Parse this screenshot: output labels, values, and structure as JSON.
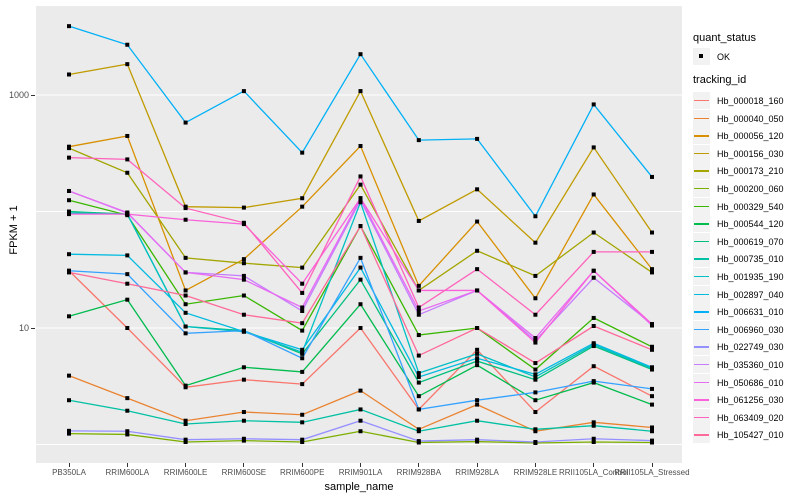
{
  "chart_data": {
    "type": "line",
    "title": "",
    "xlabel": "sample_name",
    "ylabel": "FPKM + 1",
    "y_scale": "log10",
    "ylim": [
      0.7,
      5800
    ],
    "grid": true,
    "panel_bg": "#EBEBEB",
    "grid_color": "#FFFFFF",
    "point_color": "#000000",
    "tick_label_color": "#4D4D4D",
    "gridline_values": [
      1,
      10,
      100,
      1000
    ],
    "y_ticks": [
      {
        "value": 1000,
        "label": "1000"
      },
      {
        "value": 10,
        "label": "10"
      }
    ],
    "categories": [
      "PB350LA",
      "RRIM600LA",
      "RRIM600LE",
      "RRIM600SE",
      "RRIM600PE",
      "RRIM901LA",
      "RRIM928BA",
      "RRIM928LA",
      "RRIM928LE",
      "RRII105LA_Control",
      "RRII105LA_Stressed"
    ],
    "series": [
      {
        "name": "Hb_000018_160",
        "color": "#F8766D",
        "values": [
          31,
          10,
          3.1,
          3.6,
          3.3,
          10,
          2.0,
          6.5,
          1.9,
          4.7,
          2.6
        ]
      },
      {
        "name": "Hb_000040_050",
        "color": "#EA8331",
        "values": [
          3.9,
          2.5,
          1.6,
          1.9,
          1.8,
          2.9,
          1.35,
          2.2,
          1.3,
          1.55,
          1.4
        ]
      },
      {
        "name": "Hb_000056_120",
        "color": "#D89000",
        "values": [
          360,
          445,
          21,
          39,
          110,
          365,
          23,
          82,
          18,
          140,
          32
        ]
      },
      {
        "name": "Hb_000156_030",
        "color": "#C09B00",
        "values": [
          1500,
          1840,
          110,
          108,
          130,
          1080,
          83,
          155,
          54,
          355,
          66
        ]
      },
      {
        "name": "Hb_000173_210",
        "color": "#A3A500",
        "values": [
          350,
          215,
          40,
          36,
          33,
          170,
          21,
          46,
          28,
          66,
          30
        ]
      },
      {
        "name": "Hb_000200_060",
        "color": "#7CAE00",
        "values": [
          1.24,
          1.22,
          1.05,
          1.08,
          1.05,
          1.3,
          1.04,
          1.06,
          1.03,
          1.05,
          1.04
        ]
      },
      {
        "name": "Hb_000329_540",
        "color": "#39B600",
        "values": [
          125,
          93,
          16,
          19,
          9.5,
          75,
          8.7,
          10,
          4.4,
          12.2,
          6.9
        ]
      },
      {
        "name": "Hb_000544_120",
        "color": "#00BB4E",
        "values": [
          12.6,
          17.5,
          3.2,
          4.6,
          4.2,
          16,
          2.6,
          4.8,
          2.4,
          3.4,
          2.2
        ]
      },
      {
        "name": "Hb_000619_070",
        "color": "#00BF7D",
        "values": [
          100,
          95,
          10.3,
          9.5,
          6.0,
          26,
          3.4,
          5.2,
          3.6,
          7.0,
          4.4
        ]
      },
      {
        "name": "Hb_000735_010",
        "color": "#00C1A3",
        "values": [
          2.4,
          1.95,
          1.5,
          1.6,
          1.55,
          2.0,
          1.3,
          1.6,
          1.35,
          1.45,
          1.3
        ]
      },
      {
        "name": "Hb_001935_190",
        "color": "#00BFC4",
        "values": [
          97,
          95,
          10.3,
          9.3,
          6.2,
          120,
          4.1,
          6.0,
          3.8,
          7.2,
          4.5
        ]
      },
      {
        "name": "Hb_002897_040",
        "color": "#00BAE0",
        "values": [
          43,
          42,
          13.5,
          9.3,
          6.5,
          33,
          3.8,
          5.5,
          4.0,
          7.4,
          4.6
        ]
      },
      {
        "name": "Hb_006631_010",
        "color": "#00B0F6",
        "values": [
          3900,
          2700,
          580,
          1080,
          320,
          2240,
          410,
          420,
          91,
          830,
          198
        ]
      },
      {
        "name": "Hb_006960_030",
        "color": "#35A2FF",
        "values": [
          31,
          29,
          9.0,
          9.5,
          5.5,
          40,
          2.0,
          2.4,
          2.8,
          3.5,
          3.0
        ]
      },
      {
        "name": "Hb_022749_030",
        "color": "#9590FF",
        "values": [
          1.31,
          1.3,
          1.1,
          1.12,
          1.1,
          1.6,
          1.07,
          1.1,
          1.05,
          1.12,
          1.08
        ]
      },
      {
        "name": "Hb_035360_010",
        "color": "#C77CFF",
        "values": [
          150,
          97,
          30,
          28,
          14,
          125,
          13,
          21,
          7.8,
          27,
          10.8
        ]
      },
      {
        "name": "Hb_050686_010",
        "color": "#E76BF3",
        "values": [
          150,
          98,
          30,
          26,
          15,
          130,
          14,
          21,
          8.2,
          31,
          10.5
        ]
      },
      {
        "name": "Hb_061256_030",
        "color": "#FA62DB",
        "values": [
          95,
          95,
          85,
          78,
          24,
          130,
          21,
          21,
          7.5,
          31,
          10.8
        ]
      },
      {
        "name": "Hb_063409_020",
        "color": "#FF62BC",
        "values": [
          290,
          280,
          107,
          80,
          20,
          200,
          15,
          32,
          13,
          45,
          45
        ]
      },
      {
        "name": "Hb_105427_010",
        "color": "#FF6A98",
        "values": [
          30,
          24,
          19,
          13,
          11,
          75,
          5.8,
          10,
          5,
          10.4,
          6.5
        ]
      }
    ],
    "legend_position": "right",
    "legend": {
      "quant_status": {
        "title": "quant_status",
        "items": [
          {
            "label": "OK"
          }
        ]
      },
      "tracking_id": {
        "title": "tracking_id"
      }
    }
  }
}
